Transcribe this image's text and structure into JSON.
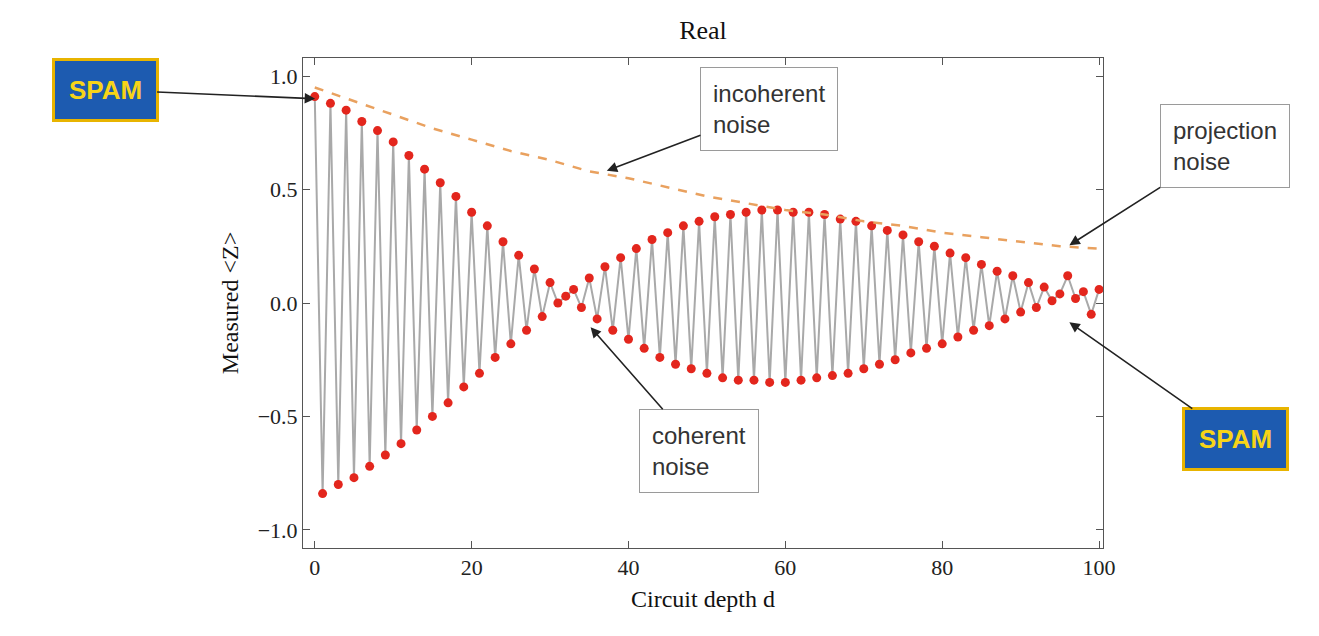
{
  "chart_data": {
    "type": "scatter",
    "title": "Real",
    "x_label": "Circuit depth d",
    "y_label": "Measured <Z>",
    "xlim": [
      -1.5,
      100.5
    ],
    "ylim": [
      -1.08,
      1.08
    ],
    "xticks": [
      0,
      20,
      40,
      60,
      80,
      100
    ],
    "yticks": [
      {
        "value": -1,
        "label": "−1.0"
      },
      {
        "value": -0.5,
        "label": "−0.5"
      },
      {
        "value": 0,
        "label": "0.0"
      },
      {
        "value": 0.5,
        "label": "0.5"
      },
      {
        "value": 1,
        "label": "1.0"
      }
    ],
    "grid": false,
    "series": [
      {
        "color": "#e3261d",
        "marker": "circle",
        "line_style": "solid",
        "x": [
          0,
          1,
          2,
          3,
          4,
          5,
          6,
          7,
          8,
          9,
          10,
          11,
          12,
          13,
          14,
          15,
          16,
          17,
          18,
          19,
          20,
          21,
          22,
          23,
          24,
          25,
          26,
          27,
          28,
          29,
          30,
          31,
          32,
          33,
          34,
          35,
          36,
          37,
          38,
          39,
          40,
          41,
          42,
          43,
          44,
          45,
          46,
          47,
          48,
          49,
          50,
          51,
          52,
          53,
          54,
          55,
          56,
          57,
          58,
          59,
          60,
          61,
          62,
          63,
          64,
          65,
          66,
          67,
          68,
          69,
          70,
          71,
          72,
          73,
          74,
          75,
          76,
          77,
          78,
          79,
          80,
          81,
          82,
          83,
          84,
          85,
          86,
          87,
          88,
          89,
          90,
          91,
          92,
          93,
          94,
          95,
          96,
          97,
          98,
          99,
          100
        ],
        "values": [
          0.91,
          -0.84,
          0.88,
          -0.8,
          0.85,
          -0.77,
          0.8,
          -0.72,
          0.76,
          -0.67,
          0.71,
          -0.62,
          0.65,
          -0.56,
          0.59,
          -0.5,
          0.53,
          -0.44,
          0.47,
          -0.37,
          0.4,
          -0.31,
          0.34,
          -0.24,
          0.27,
          -0.18,
          0.21,
          -0.12,
          0.15,
          -0.06,
          0.09,
          0.0,
          0.03,
          0.06,
          -0.02,
          0.11,
          -0.07,
          0.16,
          -0.12,
          0.2,
          -0.16,
          0.24,
          -0.2,
          0.28,
          -0.24,
          0.31,
          -0.27,
          0.34,
          -0.29,
          0.36,
          -0.31,
          0.38,
          -0.33,
          0.39,
          -0.34,
          0.4,
          -0.34,
          0.41,
          -0.35,
          0.41,
          -0.35,
          0.4,
          -0.34,
          0.4,
          -0.33,
          0.39,
          -0.32,
          0.37,
          -0.31,
          0.36,
          -0.29,
          0.34,
          -0.27,
          0.32,
          -0.25,
          0.3,
          -0.22,
          0.27,
          -0.2,
          0.25,
          -0.18,
          0.22,
          -0.15,
          0.2,
          -0.12,
          0.17,
          -0.1,
          0.14,
          -0.07,
          0.12,
          -0.04,
          0.09,
          -0.02,
          0.07,
          0.01,
          0.04,
          0.12,
          0.02,
          0.05,
          -0.05,
          0.06
        ]
      },
      {
        "color": "#e9a15f",
        "marker": "none",
        "line_style": "dashed",
        "x": [
          0,
          5,
          10,
          15,
          20,
          25,
          30,
          35,
          40,
          45,
          50,
          55,
          60,
          65,
          70,
          75,
          80,
          85,
          90,
          95,
          100
        ],
        "values": [
          0.95,
          0.89,
          0.83,
          0.77,
          0.72,
          0.67,
          0.63,
          0.58,
          0.55,
          0.51,
          0.47,
          0.44,
          0.41,
          0.39,
          0.36,
          0.34,
          0.31,
          0.29,
          0.27,
          0.25,
          0.24
        ]
      }
    ],
    "annotations": [
      {
        "text": "SPAM",
        "x": 0.3,
        "y": 0.9
      },
      {
        "text": "incoherent noise",
        "x": 37,
        "y": 0.58
      },
      {
        "text": "coherent noise",
        "x": 35,
        "y": -0.1
      },
      {
        "text": "projection noise",
        "x": 96,
        "y": 0.25
      },
      {
        "text": "SPAM",
        "x": 96,
        "y": -0.08
      }
    ]
  }
}
